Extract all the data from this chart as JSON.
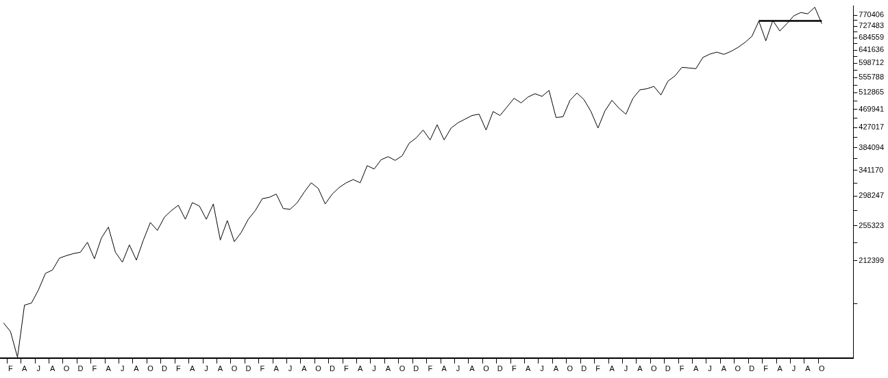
{
  "chart_data": {
    "type": "line",
    "log": "y",
    "categories": [
      null,
      "F",
      null,
      "A",
      null,
      "J",
      null,
      "A",
      null,
      "O",
      null,
      "D",
      null,
      "F",
      null,
      "A",
      null,
      "J",
      null,
      "A",
      null,
      "O",
      null,
      "D",
      null,
      "F",
      null,
      "A",
      null,
      "J",
      null,
      "A",
      null,
      "O",
      null,
      "D",
      null,
      "F",
      null,
      "A",
      null,
      "J",
      null,
      "A",
      null,
      "O",
      null,
      "D",
      null,
      "F",
      null,
      "A",
      null,
      "J",
      null,
      "A",
      null,
      "O",
      null,
      "D",
      null,
      "F",
      null,
      "A",
      null,
      "J",
      null,
      "A",
      null,
      "O",
      null,
      "D",
      null,
      "F",
      null,
      "A",
      null,
      "J",
      null,
      "A",
      null,
      "O",
      null,
      "D",
      null,
      "F",
      null,
      "A",
      null,
      "J",
      null,
      "A",
      null,
      "O",
      null,
      "D",
      null,
      "F",
      null,
      "A",
      null,
      "J",
      null,
      "A",
      null,
      "O",
      null,
      "D",
      null,
      "F",
      null,
      "A",
      null,
      "J",
      null,
      "A",
      null,
      "O",
      null,
      null,
      null,
      null
    ],
    "ylim": [
      127600,
      808700
    ],
    "yticks": [
      {
        "value": 169475,
        "label": null
      },
      212399,
      {
        "value": 233861,
        "label": null
      },
      255323,
      {
        "value": 276785,
        "label": null
      },
      298247,
      {
        "value": 319709,
        "label": null
      },
      341170,
      {
        "value": 362632,
        "label": null
      },
      384094,
      {
        "value": 405556,
        "label": null
      },
      427017,
      {
        "value": 448479,
        "label": null
      },
      469941,
      {
        "value": 491403,
        "label": null
      },
      512865,
      {
        "value": 534327,
        "label": null
      },
      555788,
      {
        "value": 577250,
        "label": null
      },
      598712,
      {
        "value": 620174,
        "label": null
      },
      641636,
      {
        "value": 663098,
        "label": null
      },
      684559,
      {
        "value": 706021,
        "label": null
      },
      727483,
      {
        "value": 748945,
        "label": null
      },
      770406
    ],
    "series": [
      {
        "type": "line",
        "color": "#000000",
        "values": [
          153400,
          146600,
          128100,
          168400,
          170200,
          182400,
          198900,
          202400,
          215400,
          218300,
          220600,
          222200,
          234100,
          214700,
          239400,
          253500,
          222200,
          210900,
          230900,
          213200,
          236900,
          259700,
          249100,
          266900,
          276400,
          284200,
          264200,
          288200,
          283200,
          264200,
          286200,
          236900,
          262400,
          234900,
          246600,
          264200,
          276400,
          294200,
          296300,
          301400,
          279300,
          278400,
          288200,
          304600,
          319800,
          310600,
          286200,
          301400,
          312000,
          319800,
          325300,
          319800,
          349800,
          343800,
          361000,
          366700,
          359700,
          368400,
          393500,
          404600,
          421800,
          400500,
          433600,
          400500,
          426200,
          438300,
          446600,
          455200,
          458300,
          421800,
          464700,
          455200,
          476100,
          498100,
          486200,
          501500,
          510200,
          503200,
          519200,
          450500,
          452100,
          492900,
          512000,
          494600,
          464700,
          426200,
          466300,
          492900,
          472800,
          458300,
          498100,
          520900,
          523700,
          530100,
          506800,
          545000,
          560000,
          586000,
          584000,
          581900,
          617000,
          628100,
          634600,
          627200,
          636900,
          650200,
          667400,
          689000,
          746600,
          673300,
          749200,
          709000,
          736600,
          767700,
          781100,
          775800,
          803100,
          736600,
          null,
          null,
          null,
          null
        ]
      },
      {
        "type": "line",
        "color": "#000000",
        "values": [
          null,
          null,
          null,
          null,
          null,
          null,
          null,
          null,
          null,
          null,
          null,
          null,
          null,
          null,
          null,
          null,
          null,
          null,
          null,
          null,
          null,
          null,
          null,
          null,
          null,
          null,
          null,
          null,
          null,
          null,
          null,
          null,
          null,
          null,
          null,
          null,
          null,
          null,
          null,
          null,
          null,
          null,
          null,
          null,
          null,
          null,
          null,
          null,
          null,
          null,
          null,
          null,
          null,
          null,
          null,
          null,
          null,
          null,
          null,
          null,
          null,
          null,
          null,
          null,
          null,
          null,
          null,
          null,
          null,
          null,
          null,
          null,
          null,
          null,
          null,
          null,
          null,
          null,
          null,
          null,
          null,
          null,
          null,
          null,
          null,
          null,
          null,
          null,
          null,
          null,
          null,
          null,
          null,
          null,
          null,
          null,
          null,
          null,
          null,
          null,
          null,
          null,
          null,
          null,
          null,
          null,
          null,
          null,
          747400,
          747400,
          747400,
          747400,
          747400,
          747400,
          747400,
          747400,
          747400,
          747400,
          null,
          null,
          null,
          null
        ]
      }
    ]
  }
}
